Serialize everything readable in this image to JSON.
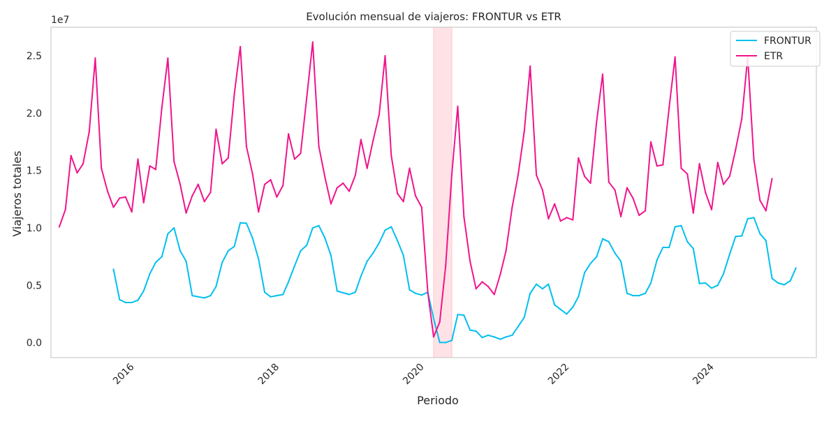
{
  "chart_data": {
    "type": "line",
    "title": "Evolución mensual de viajeros: FRONTUR vs ETR",
    "xlabel": "Periodo",
    "ylabel": "Viajeros totales",
    "offset_text": "1e7",
    "xlim": [
      "2014-11-20",
      "2025-06-12"
    ],
    "ylim": [
      -1300000,
      27500000
    ],
    "x_ticks": [
      "2016",
      "2018",
      "2020",
      "2022",
      "2024"
    ],
    "y_ticks": [
      {
        "value": 0,
        "label": "0.0"
      },
      {
        "value": 5000000,
        "label": "0.5"
      },
      {
        "value": 10000000,
        "label": "1.0"
      },
      {
        "value": 15000000,
        "label": "1.5"
      },
      {
        "value": 20000000,
        "label": "2.0"
      },
      {
        "value": 25000000,
        "label": "2.5"
      }
    ],
    "grid": false,
    "legend_position": "top-right",
    "highlight": {
      "start": "2020-03-01",
      "end": "2020-06-01",
      "color": "#ffb6c1"
    },
    "series": [
      {
        "name": "FRONTUR",
        "color": "#00bfef",
        "start": "2015-10",
        "values": [
          6400000,
          3750000,
          3500000,
          3500000,
          3700000,
          4500000,
          6000000,
          7000000,
          7500000,
          9500000,
          10000000,
          8000000,
          7100000,
          4100000,
          4000000,
          3900000,
          4100000,
          4900000,
          7000000,
          8000000,
          8400000,
          10450000,
          10400000,
          9100000,
          7300000,
          4400000,
          4000000,
          4100000,
          4200000,
          5300000,
          6700000,
          8000000,
          8500000,
          10000000,
          10200000,
          9100000,
          7600000,
          4500000,
          4350000,
          4200000,
          4400000,
          5800000,
          7100000,
          7800000,
          8700000,
          9800000,
          10100000,
          8900000,
          7600000,
          4600000,
          4300000,
          4150000,
          4400000,
          2100000,
          20000,
          10000,
          200000,
          2450000,
          2400000,
          1100000,
          1000000,
          450000,
          650000,
          500000,
          300000,
          500000,
          650000,
          1400000,
          2200000,
          4300000,
          5100000,
          4700000,
          5100000,
          3300000,
          2900000,
          2500000,
          3100000,
          4000000,
          6100000,
          6900000,
          7500000,
          9050000,
          8800000,
          7800000,
          7100000,
          4300000,
          4100000,
          4100000,
          4300000,
          5200000,
          7200000,
          8300000,
          8300000,
          10100000,
          10200000,
          8800000,
          8200000,
          5150000,
          5200000,
          4750000,
          5000000,
          6000000,
          7700000,
          9250000,
          9300000,
          10800000,
          10900000,
          9500000,
          8900000,
          5600000,
          5200000,
          5050000,
          5400000,
          6500000
        ]
      },
      {
        "name": "ETR",
        "color": "#f0148c",
        "start": "2015-01",
        "values": [
          10100000,
          11600000,
          16300000,
          14800000,
          15600000,
          18400000,
          24800000,
          15200000,
          13200000,
          11800000,
          12600000,
          12700000,
          11400000,
          16000000,
          12200000,
          15400000,
          15100000,
          20500000,
          24800000,
          15800000,
          13800000,
          11300000,
          12800000,
          13800000,
          12300000,
          13100000,
          18600000,
          15600000,
          16100000,
          21700000,
          25800000,
          17100000,
          14700000,
          11400000,
          13800000,
          14200000,
          12700000,
          13700000,
          18200000,
          16000000,
          16500000,
          21400000,
          26200000,
          17100000,
          14400000,
          12100000,
          13500000,
          13900000,
          13200000,
          14600000,
          17700000,
          15200000,
          17600000,
          19900000,
          25000000,
          16300000,
          13000000,
          12300000,
          15200000,
          12800000,
          11800000,
          4400000,
          500000,
          1800000,
          6700000,
          14700000,
          20600000,
          11000000,
          7100000,
          4700000,
          5300000,
          4900000,
          4200000,
          6000000,
          8000000,
          11800000,
          14600000,
          18400000,
          24100000,
          14600000,
          13300000,
          10800000,
          12100000,
          10600000,
          10900000,
          10700000,
          16100000,
          14500000,
          13900000,
          19300000,
          23400000,
          14000000,
          13300000,
          11000000,
          13500000,
          12600000,
          11100000,
          11500000,
          17500000,
          15400000,
          15500000,
          20500000,
          24900000,
          15200000,
          14700000,
          11300000,
          15600000,
          13100000,
          11600000,
          15700000,
          13800000,
          14500000,
          16800000,
          19500000,
          24900000,
          16000000,
          12400000,
          11500000,
          14300000
        ]
      }
    ]
  }
}
